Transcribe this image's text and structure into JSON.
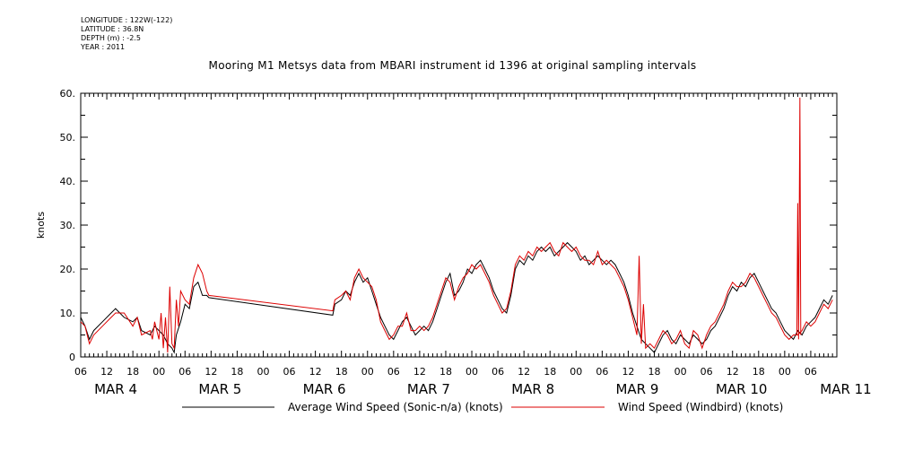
{
  "header": {
    "longitude": "LONGITUDE : 122W(-122)",
    "latitude": "LATITUDE : 36.8N",
    "depth": "DEPTH (m) : -2.5",
    "year": "YEAR : 2011",
    "title": "Mooring M1 Metsys data from MBARI instrument id 1396 at original sampling intervals"
  },
  "chart_data": {
    "type": "line",
    "title": "Mooring M1 Metsys data from MBARI instrument id 1396 at original sampling intervals",
    "ylabel": "knots",
    "xlabel": "",
    "ylim": [
      0,
      60
    ],
    "xlim_hours": [
      0,
      174
    ],
    "grid": false,
    "legend_position": "bottom",
    "y_ticks": [
      "0",
      "10.",
      "20.",
      "30.",
      "40.",
      "50.",
      "60."
    ],
    "x_hour_ticks": [
      "06",
      "12",
      "18",
      "00",
      "06",
      "12",
      "18",
      "00",
      "06",
      "12",
      "18",
      "00",
      "06",
      "12",
      "18",
      "00",
      "06",
      "12",
      "18",
      "00",
      "06",
      "12",
      "18",
      "00",
      "06",
      "12",
      "18",
      "00",
      "06"
    ],
    "x_date_labels": [
      "MAR 4",
      "MAR 5",
      "MAR 6",
      "MAR 7",
      "MAR 8",
      "MAR 9",
      "MAR 10",
      "MAR 11"
    ],
    "series": [
      {
        "name": "Average Wind Speed (Sonic-n/a) (knots)",
        "color": "#000000",
        "points": [
          [
            0,
            9
          ],
          [
            1,
            7
          ],
          [
            2,
            4
          ],
          [
            3,
            6
          ],
          [
            5,
            8
          ],
          [
            7,
            10
          ],
          [
            8,
            11
          ],
          [
            10,
            9
          ],
          [
            12,
            8
          ],
          [
            13,
            9
          ],
          [
            14,
            6
          ],
          [
            16,
            5
          ],
          [
            17,
            7
          ],
          [
            18,
            6
          ],
          [
            19,
            5
          ],
          [
            20,
            3
          ],
          [
            21,
            2
          ],
          [
            21.5,
            1
          ],
          [
            22,
            5
          ],
          [
            23,
            8
          ],
          [
            24,
            12
          ],
          [
            25,
            11
          ],
          [
            26,
            16
          ],
          [
            27,
            17
          ],
          [
            28,
            14
          ],
          [
            29,
            14
          ],
          [
            29.5,
            13.5
          ],
          [
            58,
            9.5
          ],
          [
            58.5,
            12
          ],
          [
            60,
            13
          ],
          [
            61,
            15
          ],
          [
            62,
            14
          ],
          [
            63,
            17
          ],
          [
            64,
            19
          ],
          [
            65,
            17
          ],
          [
            66,
            18
          ],
          [
            67,
            15
          ],
          [
            68,
            12
          ],
          [
            69,
            9
          ],
          [
            70,
            7
          ],
          [
            71,
            5
          ],
          [
            72,
            4
          ],
          [
            73,
            6
          ],
          [
            74,
            8
          ],
          [
            75,
            9
          ],
          [
            76,
            7
          ],
          [
            77,
            5
          ],
          [
            78,
            6
          ],
          [
            79,
            7
          ],
          [
            80,
            6
          ],
          [
            81,
            8
          ],
          [
            82,
            11
          ],
          [
            83,
            14
          ],
          [
            84,
            17
          ],
          [
            85,
            19
          ],
          [
            86,
            14
          ],
          [
            87,
            15
          ],
          [
            88,
            17
          ],
          [
            89,
            20
          ],
          [
            90,
            19
          ],
          [
            91,
            21
          ],
          [
            92,
            22
          ],
          [
            93,
            20
          ],
          [
            94,
            18
          ],
          [
            95,
            15
          ],
          [
            96,
            13
          ],
          [
            97,
            11
          ],
          [
            98,
            10
          ],
          [
            99,
            14
          ],
          [
            100,
            20
          ],
          [
            101,
            22
          ],
          [
            102,
            21
          ],
          [
            103,
            23
          ],
          [
            104,
            22
          ],
          [
            105,
            24
          ],
          [
            106,
            25
          ],
          [
            107,
            24
          ],
          [
            108,
            25
          ],
          [
            109,
            23
          ],
          [
            110,
            24
          ],
          [
            111,
            25
          ],
          [
            112,
            26
          ],
          [
            113,
            25
          ],
          [
            114,
            24
          ],
          [
            115,
            22
          ],
          [
            116,
            23
          ],
          [
            117,
            21
          ],
          [
            118,
            22
          ],
          [
            119,
            23
          ],
          [
            120,
            22
          ],
          [
            121,
            21
          ],
          [
            122,
            22
          ],
          [
            123,
            21
          ],
          [
            124,
            19
          ],
          [
            125,
            17
          ],
          [
            126,
            14
          ],
          [
            127,
            10
          ],
          [
            128,
            7
          ],
          [
            129,
            4
          ],
          [
            130,
            3
          ],
          [
            131,
            2
          ],
          [
            132,
            1
          ],
          [
            133,
            3
          ],
          [
            134,
            5
          ],
          [
            135,
            6
          ],
          [
            136,
            4
          ],
          [
            137,
            3
          ],
          [
            138,
            5
          ],
          [
            139,
            4
          ],
          [
            140,
            3
          ],
          [
            141,
            5
          ],
          [
            142,
            4
          ],
          [
            143,
            3
          ],
          [
            144,
            4
          ],
          [
            145,
            6
          ],
          [
            146,
            7
          ],
          [
            147,
            9
          ],
          [
            148,
            11
          ],
          [
            149,
            14
          ],
          [
            150,
            16
          ],
          [
            151,
            15
          ],
          [
            152,
            17
          ],
          [
            153,
            16
          ],
          [
            154,
            18
          ],
          [
            155,
            19
          ],
          [
            156,
            17
          ],
          [
            157,
            15
          ],
          [
            158,
            13
          ],
          [
            159,
            11
          ],
          [
            160,
            10
          ],
          [
            161,
            8
          ],
          [
            162,
            6
          ],
          [
            163,
            5
          ],
          [
            164,
            4
          ],
          [
            165,
            6
          ],
          [
            166,
            5
          ],
          [
            167,
            7
          ],
          [
            168,
            8
          ],
          [
            169,
            9
          ],
          [
            170,
            11
          ],
          [
            171,
            13
          ],
          [
            172,
            12
          ],
          [
            173,
            14
          ]
        ]
      },
      {
        "name": "Wind Speed (Windbird) (knots)",
        "color": "#dd0000",
        "points": [
          [
            0,
            8
          ],
          [
            1,
            7
          ],
          [
            2,
            3
          ],
          [
            3,
            5
          ],
          [
            5,
            7
          ],
          [
            7,
            9
          ],
          [
            8,
            10
          ],
          [
            10,
            10
          ],
          [
            12,
            7
          ],
          [
            13,
            9
          ],
          [
            14,
            5
          ],
          [
            16,
            6
          ],
          [
            16.5,
            4
          ],
          [
            17,
            8
          ],
          [
            18,
            4
          ],
          [
            18.5,
            10
          ],
          [
            19,
            2
          ],
          [
            19.5,
            9
          ],
          [
            20,
            1
          ],
          [
            20.5,
            16
          ],
          [
            21,
            3
          ],
          [
            21.5,
            2
          ],
          [
            22,
            13
          ],
          [
            22.5,
            7
          ],
          [
            23,
            15
          ],
          [
            24,
            13
          ],
          [
            25,
            12
          ],
          [
            26,
            18
          ],
          [
            27,
            21
          ],
          [
            28,
            19
          ],
          [
            29,
            15
          ],
          [
            29.5,
            14
          ],
          [
            58,
            10.5
          ],
          [
            58.5,
            13
          ],
          [
            60,
            14
          ],
          [
            61,
            15
          ],
          [
            62,
            13
          ],
          [
            63,
            18
          ],
          [
            64,
            20
          ],
          [
            65,
            18
          ],
          [
            66,
            17
          ],
          [
            67,
            16
          ],
          [
            68,
            13
          ],
          [
            69,
            8
          ],
          [
            70,
            6
          ],
          [
            71,
            4
          ],
          [
            72,
            5
          ],
          [
            73,
            7
          ],
          [
            74,
            7
          ],
          [
            75,
            10
          ],
          [
            76,
            6
          ],
          [
            77,
            6
          ],
          [
            78,
            7
          ],
          [
            79,
            6
          ],
          [
            80,
            7
          ],
          [
            81,
            9
          ],
          [
            82,
            12
          ],
          [
            83,
            15
          ],
          [
            84,
            18
          ],
          [
            85,
            17
          ],
          [
            86,
            13
          ],
          [
            87,
            16
          ],
          [
            88,
            18
          ],
          [
            89,
            19
          ],
          [
            90,
            21
          ],
          [
            91,
            20
          ],
          [
            92,
            21
          ],
          [
            93,
            19
          ],
          [
            94,
            17
          ],
          [
            95,
            14
          ],
          [
            96,
            12
          ],
          [
            97,
            10
          ],
          [
            98,
            11
          ],
          [
            99,
            15
          ],
          [
            100,
            21
          ],
          [
            101,
            23
          ],
          [
            102,
            22
          ],
          [
            103,
            24
          ],
          [
            104,
            23
          ],
          [
            105,
            25
          ],
          [
            106,
            24
          ],
          [
            107,
            25
          ],
          [
            108,
            26
          ],
          [
            109,
            24
          ],
          [
            110,
            23
          ],
          [
            111,
            26
          ],
          [
            112,
            25
          ],
          [
            113,
            24
          ],
          [
            114,
            25
          ],
          [
            115,
            23
          ],
          [
            116,
            22
          ],
          [
            117,
            22
          ],
          [
            118,
            21
          ],
          [
            119,
            24
          ],
          [
            120,
            21
          ],
          [
            121,
            22
          ],
          [
            122,
            21
          ],
          [
            123,
            20
          ],
          [
            124,
            18
          ],
          [
            125,
            16
          ],
          [
            126,
            13
          ],
          [
            127,
            9
          ],
          [
            128,
            5
          ],
          [
            128.5,
            23
          ],
          [
            129,
            3
          ],
          [
            129.5,
            12
          ],
          [
            130,
            2
          ],
          [
            131,
            3
          ],
          [
            132,
            2
          ],
          [
            133,
            4
          ],
          [
            134,
            6
          ],
          [
            135,
            5
          ],
          [
            136,
            3
          ],
          [
            137,
            4
          ],
          [
            138,
            6
          ],
          [
            139,
            3
          ],
          [
            140,
            2
          ],
          [
            141,
            6
          ],
          [
            142,
            5
          ],
          [
            143,
            2
          ],
          [
            144,
            5
          ],
          [
            145,
            7
          ],
          [
            146,
            8
          ],
          [
            147,
            10
          ],
          [
            148,
            12
          ],
          [
            149,
            15
          ],
          [
            150,
            17
          ],
          [
            151,
            16
          ],
          [
            152,
            16
          ],
          [
            153,
            17
          ],
          [
            154,
            19
          ],
          [
            155,
            18
          ],
          [
            156,
            16
          ],
          [
            157,
            14
          ],
          [
            158,
            12
          ],
          [
            159,
            10
          ],
          [
            160,
            9
          ],
          [
            161,
            7
          ],
          [
            162,
            5
          ],
          [
            163,
            4
          ],
          [
            164,
            5
          ],
          [
            165,
            5
          ],
          [
            166,
            6
          ],
          [
            167,
            8
          ],
          [
            168,
            7
          ],
          [
            169,
            8
          ],
          [
            170,
            10
          ],
          [
            171,
            12
          ],
          [
            172,
            11
          ],
          [
            173,
            13
          ]
        ]
      }
    ]
  }
}
